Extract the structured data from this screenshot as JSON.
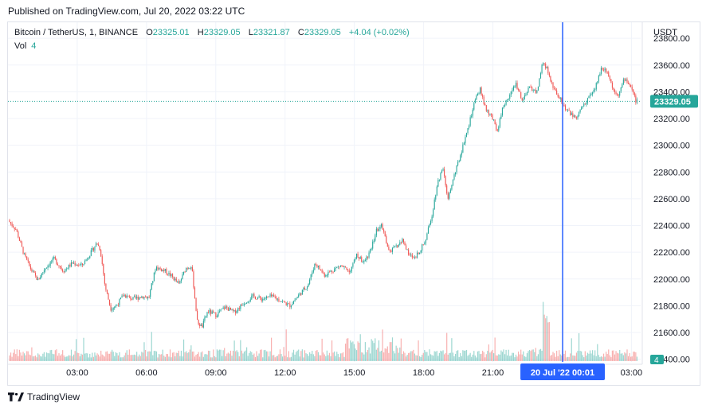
{
  "published": "Published on TradingView.com, Jul 20, 2022 03:22 UTC",
  "legend": {
    "symbol": "Bitcoin / TetherUS, 1, BINANCE",
    "o_label": "O",
    "o_value": "23325.01",
    "h_label": "H",
    "h_value": "23329.05",
    "l_label": "L",
    "l_value": "23321.87",
    "c_label": "C",
    "c_value": "23329.05",
    "change": "+4.04 (+0.02%)"
  },
  "volume_legend": {
    "label": "Vol",
    "value": "4"
  },
  "footer": {
    "brand": "TradingView"
  },
  "colors": {
    "up": "#26a69a",
    "down": "#ef5350",
    "crosshair": "#2962ff",
    "grid": "#f0f3fa"
  },
  "chart_data": {
    "type": "candlestick",
    "currency": "USDT",
    "last_price": "23329.05",
    "crosshair_label": "20 Jul '22   00:01",
    "volume_badge": "4",
    "y_ticks": [
      "23800.00",
      "23600.00",
      "23400.00",
      "23200.00",
      "23000.00",
      "22800.00",
      "22600.00",
      "22400.00",
      "22200.00",
      "22000.00",
      "21800.00",
      "21600.00",
      "21400.00"
    ],
    "y_tick_values": [
      23800,
      23600,
      23400,
      23200,
      23000,
      22800,
      22600,
      22400,
      22200,
      22000,
      21800,
      21600,
      21400
    ],
    "ylim": [
      21380,
      23920
    ],
    "x_ticks": [
      "03:00",
      "06:00",
      "09:00",
      "12:00",
      "15:00",
      "18:00",
      "21:00",
      "00:01",
      "03:00"
    ],
    "x_tick_hours": [
      3,
      6,
      9,
      12,
      15,
      18,
      21,
      24,
      27
    ],
    "xlim_hours": [
      0,
      27.4
    ],
    "crosshair_hour": 24.02,
    "price_path": [
      {
        "t": 0.0,
        "p": 22440
      },
      {
        "t": 0.35,
        "p": 22370
      },
      {
        "t": 0.7,
        "p": 22180
      },
      {
        "t": 1.0,
        "p": 22070
      },
      {
        "t": 1.3,
        "p": 21990
      },
      {
        "t": 1.6,
        "p": 22080
      },
      {
        "t": 2.0,
        "p": 22150
      },
      {
        "t": 2.4,
        "p": 22060
      },
      {
        "t": 2.8,
        "p": 22120
      },
      {
        "t": 3.2,
        "p": 22100
      },
      {
        "t": 3.6,
        "p": 22200
      },
      {
        "t": 3.85,
        "p": 22270
      },
      {
        "t": 4.0,
        "p": 22220
      },
      {
        "t": 4.2,
        "p": 21950
      },
      {
        "t": 4.45,
        "p": 21780
      },
      {
        "t": 4.7,
        "p": 21800
      },
      {
        "t": 5.0,
        "p": 21880
      },
      {
        "t": 5.4,
        "p": 21850
      },
      {
        "t": 5.8,
        "p": 21870
      },
      {
        "t": 6.1,
        "p": 21860
      },
      {
        "t": 6.4,
        "p": 22090
      },
      {
        "t": 6.8,
        "p": 22060
      },
      {
        "t": 7.1,
        "p": 22020
      },
      {
        "t": 7.4,
        "p": 21960
      },
      {
        "t": 7.7,
        "p": 22080
      },
      {
        "t": 7.95,
        "p": 22100
      },
      {
        "t": 8.2,
        "p": 21680
      },
      {
        "t": 8.4,
        "p": 21640
      },
      {
        "t": 8.65,
        "p": 21760
      },
      {
        "t": 9.0,
        "p": 21730
      },
      {
        "t": 9.4,
        "p": 21790
      },
      {
        "t": 9.8,
        "p": 21750
      },
      {
        "t": 10.2,
        "p": 21820
      },
      {
        "t": 10.6,
        "p": 21870
      },
      {
        "t": 11.0,
        "p": 21850
      },
      {
        "t": 11.4,
        "p": 21870
      },
      {
        "t": 11.8,
        "p": 21840
      },
      {
        "t": 12.2,
        "p": 21800
      },
      {
        "t": 12.6,
        "p": 21880
      },
      {
        "t": 13.0,
        "p": 21960
      },
      {
        "t": 13.3,
        "p": 22120
      },
      {
        "t": 13.7,
        "p": 22030
      },
      {
        "t": 14.0,
        "p": 22060
      },
      {
        "t": 14.4,
        "p": 22100
      },
      {
        "t": 14.8,
        "p": 22060
      },
      {
        "t": 15.1,
        "p": 22180
      },
      {
        "t": 15.4,
        "p": 22120
      },
      {
        "t": 15.7,
        "p": 22210
      },
      {
        "t": 15.95,
        "p": 22360
      },
      {
        "t": 16.2,
        "p": 22400
      },
      {
        "t": 16.5,
        "p": 22200
      },
      {
        "t": 16.8,
        "p": 22240
      },
      {
        "t": 17.1,
        "p": 22290
      },
      {
        "t": 17.35,
        "p": 22180
      },
      {
        "t": 17.6,
        "p": 22160
      },
      {
        "t": 17.9,
        "p": 22230
      },
      {
        "t": 18.1,
        "p": 22300
      },
      {
        "t": 18.35,
        "p": 22470
      },
      {
        "t": 18.6,
        "p": 22720
      },
      {
        "t": 18.85,
        "p": 22840
      },
      {
        "t": 19.05,
        "p": 22590
      },
      {
        "t": 19.3,
        "p": 22760
      },
      {
        "t": 19.55,
        "p": 22900
      },
      {
        "t": 19.8,
        "p": 23060
      },
      {
        "t": 20.0,
        "p": 23180
      },
      {
        "t": 20.2,
        "p": 23320
      },
      {
        "t": 20.45,
        "p": 23420
      },
      {
        "t": 20.7,
        "p": 23260
      },
      {
        "t": 20.95,
        "p": 23210
      },
      {
        "t": 21.2,
        "p": 23110
      },
      {
        "t": 21.4,
        "p": 23270
      },
      {
        "t": 21.7,
        "p": 23370
      },
      {
        "t": 22.0,
        "p": 23460
      },
      {
        "t": 22.3,
        "p": 23330
      },
      {
        "t": 22.6,
        "p": 23440
      },
      {
        "t": 22.9,
        "p": 23390
      },
      {
        "t": 23.15,
        "p": 23620
      },
      {
        "t": 23.35,
        "p": 23570
      },
      {
        "t": 23.6,
        "p": 23430
      },
      {
        "t": 23.85,
        "p": 23370
      },
      {
        "t": 24.05,
        "p": 23300
      },
      {
        "t": 24.3,
        "p": 23250
      },
      {
        "t": 24.55,
        "p": 23200
      },
      {
        "t": 24.85,
        "p": 23280
      },
      {
        "t": 25.1,
        "p": 23350
      },
      {
        "t": 25.4,
        "p": 23410
      },
      {
        "t": 25.7,
        "p": 23580
      },
      {
        "t": 25.95,
        "p": 23560
      },
      {
        "t": 26.2,
        "p": 23420
      },
      {
        "t": 26.45,
        "p": 23380
      },
      {
        "t": 26.7,
        "p": 23500
      },
      {
        "t": 26.95,
        "p": 23450
      },
      {
        "t": 27.2,
        "p": 23329
      }
    ],
    "volume_max": 200
  }
}
